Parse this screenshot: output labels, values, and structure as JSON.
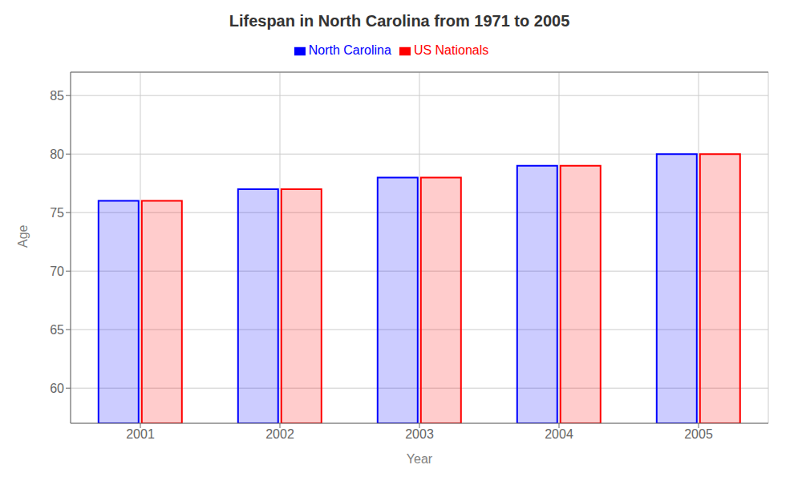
{
  "chart_data": {
    "type": "bar",
    "title": "Lifespan in North Carolina from 1971 to 2005",
    "xlabel": "Year",
    "ylabel": "Age",
    "categories": [
      "2001",
      "2002",
      "2003",
      "2004",
      "2005"
    ],
    "series": [
      {
        "name": "North Carolina",
        "color": "#0000ff",
        "values": [
          76,
          77,
          78,
          79,
          80
        ]
      },
      {
        "name": "US Nationals",
        "color": "#ff0000",
        "values": [
          76,
          77,
          78,
          79,
          80
        ]
      }
    ],
    "ylim": [
      57,
      87
    ],
    "yticks": [
      60,
      65,
      70,
      75,
      80,
      85
    ],
    "grid": true,
    "legend": "top"
  }
}
